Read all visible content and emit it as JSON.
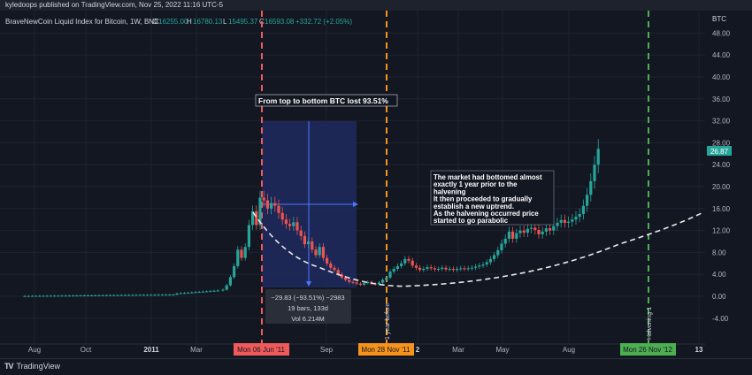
{
  "header": {
    "published": "kyledoops published on TradingView.com, Nov 25, 2022 11:16 UTC-5",
    "symbol": "BraveNewCoin Liquid Index for Bitcoin, 1W, BNC",
    "ohlc": {
      "o_label": "O",
      "o_value": "16255.00",
      "h_label": "H",
      "h_value": "16780.13",
      "l_label": "L",
      "l_value": "15495.37",
      "c_label": "C",
      "c_value": "16593.08",
      "change": "+332.72 (+2.05%)"
    }
  },
  "price_axis": {
    "currency": "BTC",
    "ticks": [
      "48.00",
      "44.00",
      "40.00",
      "36.00",
      "32.00",
      "28.00",
      "24.00",
      "20.00",
      "16.00",
      "12.00",
      "8.00",
      "4.00",
      "0.00",
      "-4.00"
    ],
    "current_price": "26.87"
  },
  "time_axis": {
    "labels": [
      "Aug",
      "Oct",
      "2011",
      "Mar",
      "Sep",
      "2",
      "Mar",
      "May",
      "Aug",
      "13"
    ],
    "markers": [
      {
        "label": "Mon 06 Jun '11",
        "color": "#f05a5a"
      },
      {
        "label": "Mon 28 Nov '11",
        "color": "#f7931a"
      },
      {
        "label": "Mon 26 Nov '12",
        "color": "#4caf50"
      }
    ]
  },
  "annotations": {
    "top_bottom": "From top to bottom BTC lost 93.51%",
    "uptrend_lines": [
      "The market had bottomed almost",
      "exactly 1 year prior to the",
      "halvening",
      "It then proceeded to gradually",
      "establish a new uptrend.",
      "As the halvening occurred price",
      "started to go parabolic"
    ],
    "year_before": "1 year before",
    "halvening": "Halvening 1",
    "measure": {
      "line1": "−29.83 (−93.51%) −2983",
      "line2": "19 bars, 133d",
      "line3": "Vol 6.214M"
    }
  },
  "colors": {
    "background": "#131722",
    "up": "#26a69a",
    "down": "#ef5350",
    "red_marker": "#f05a5a",
    "orange_marker": "#f7931a",
    "green_marker": "#4caf50",
    "measure_box": "#1e2a5e"
  },
  "footer": {
    "brand": "TradingView"
  }
}
